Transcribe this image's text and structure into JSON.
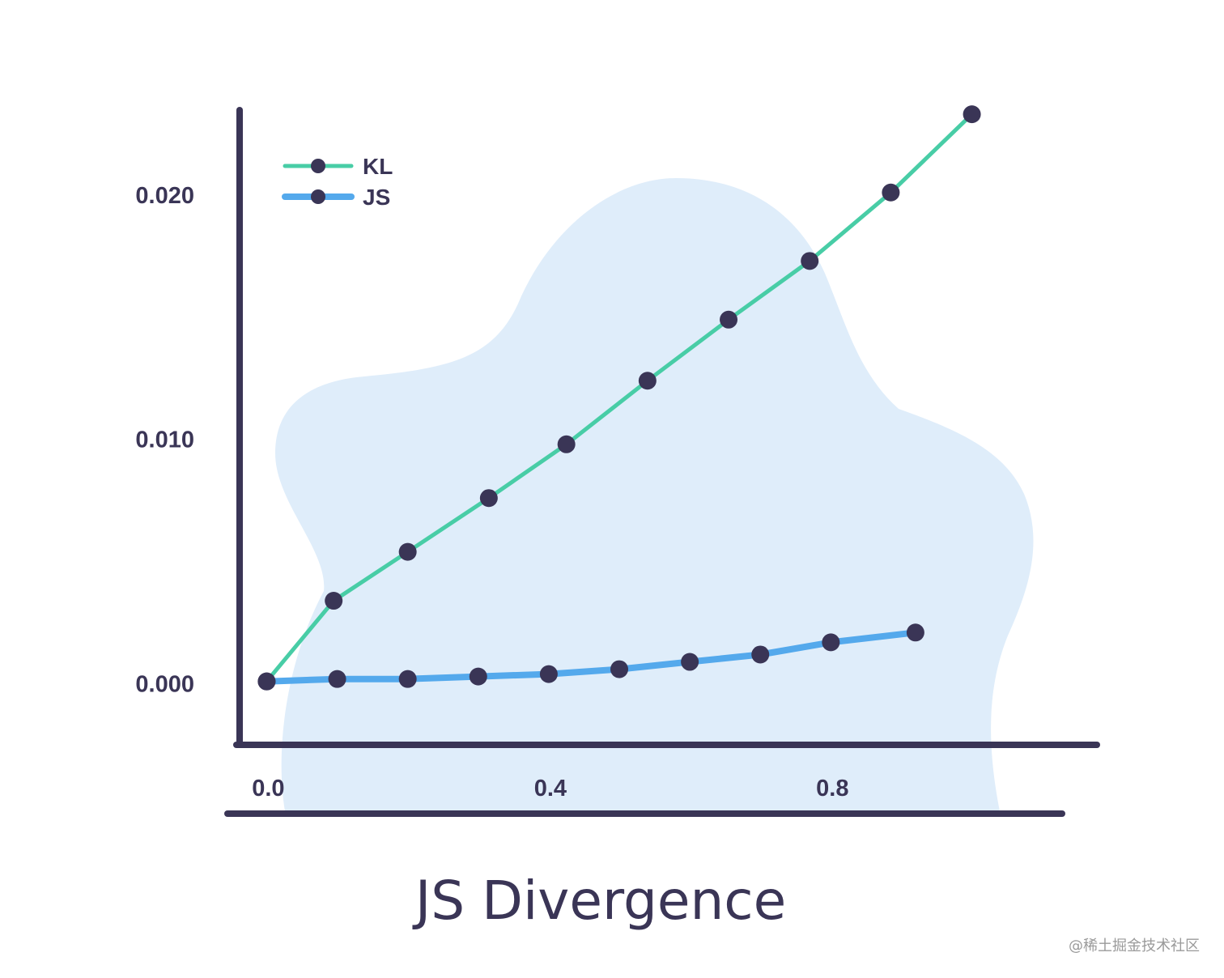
{
  "colors": {
    "axis": "#3a3556",
    "kl_line": "#48cda6",
    "js_line": "#54a9ec",
    "marker": "#3a3556",
    "blob": "#dfedfa",
    "text": "#3a3556"
  },
  "watermark": "@稀土掘金技术社区",
  "chart_data": {
    "type": "line",
    "title": "JS Divergence",
    "xlabel": "",
    "ylabel": "",
    "xlim": [
      -0.02,
      1.02
    ],
    "ylim": [
      -0.0015,
      0.024
    ],
    "x_ticks": [
      0.0,
      0.4,
      0.8
    ],
    "x_tick_labels": [
      "0.0",
      "0.4",
      "0.8"
    ],
    "y_ticks": [
      0.0,
      0.01,
      0.02
    ],
    "y_tick_labels": [
      "0.000",
      "0.010",
      "0.020"
    ],
    "grid": false,
    "legend_position": "top-left",
    "series": [
      {
        "name": "KL",
        "color": "#48cda6",
        "x": [
          0.0,
          0.095,
          0.2,
          0.315,
          0.425,
          0.54,
          0.655,
          0.77,
          0.885,
          1.0
        ],
        "y": [
          0.0001,
          0.0034,
          0.0054,
          0.0076,
          0.0098,
          0.0124,
          0.0149,
          0.0173,
          0.0201,
          0.0233
        ]
      },
      {
        "name": "JS",
        "color": "#54a9ec",
        "x": [
          0.0,
          0.1,
          0.2,
          0.3,
          0.4,
          0.5,
          0.6,
          0.7,
          0.8,
          0.92
        ],
        "y": [
          0.0001,
          0.0002,
          0.0002,
          0.0003,
          0.0004,
          0.0006,
          0.0009,
          0.0012,
          0.0017,
          0.0021
        ]
      }
    ]
  }
}
